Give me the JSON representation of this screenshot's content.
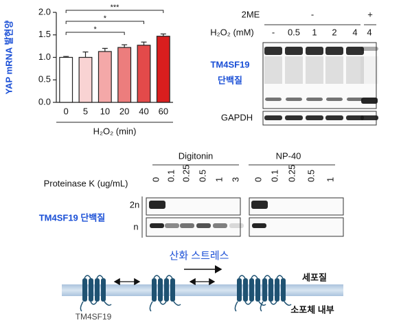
{
  "chart_data": {
    "type": "bar",
    "ylabel": "YAP mRNA 발현양",
    "xlabel": "H₂O₂ (min)",
    "categories": [
      "0",
      "5",
      "10",
      "20",
      "40",
      "60"
    ],
    "values": [
      1.0,
      1.0,
      1.13,
      1.22,
      1.27,
      1.47
    ],
    "errors": [
      0.02,
      0.12,
      0.07,
      0.06,
      0.07,
      0.05
    ],
    "colors": [
      "#ffffff",
      "#f9d3d3",
      "#f4a8a8",
      "#ec7d7d",
      "#e34a4a",
      "#d91e1e"
    ],
    "ylim": [
      0,
      2
    ],
    "yticks": [
      {
        "value": 0,
        "label": "0.0"
      },
      {
        "value": 0.5,
        "label": "0.5"
      },
      {
        "value": 1,
        "label": "1.0"
      },
      {
        "value": 1.5,
        "label": "1.5"
      },
      {
        "value": 2,
        "label": "2.0"
      }
    ],
    "annotations": [
      "***",
      "*",
      "*"
    ]
  },
  "blot_top": {
    "reagent": "2ME",
    "reagent_levels": [
      "-",
      "+"
    ],
    "treatment": "H₂O₂ (mM)",
    "lanes": [
      "-",
      "0.5",
      "1",
      "2",
      "4",
      "4"
    ],
    "target": [
      "TM4SF19",
      "단백질"
    ],
    "loading": "GAPDH"
  },
  "blot_bottom": {
    "groups": [
      "Digitonin",
      "NP-40"
    ],
    "treatment": "Proteinase K (ug/mL)",
    "lanes": [
      [
        "0",
        "0.1",
        "0.25",
        "0.5",
        "1",
        "3"
      ],
      [
        "0",
        "0.1",
        "0.25",
        "0.5",
        "1"
      ]
    ],
    "rows": [
      "2n",
      "n"
    ],
    "target": "TM4SF19 단백질"
  },
  "diagram": {
    "stimulus": "산화 스트레스",
    "cytoplasm": "세포질",
    "er_lumen": "소포체 내부",
    "protein": "TM4SF19"
  }
}
